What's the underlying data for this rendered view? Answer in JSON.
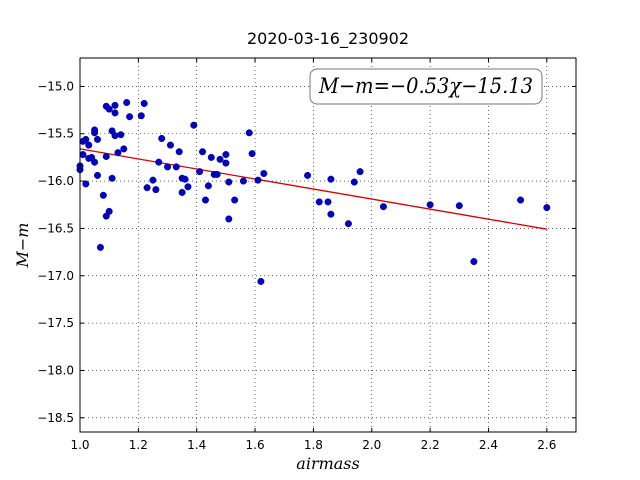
{
  "chart_data": {
    "type": "scatter",
    "title": "2020-03-16_230902",
    "xlabel": "airmass",
    "ylabel": "M−m",
    "xlim": [
      1.0,
      2.7
    ],
    "ylim": [
      -18.65,
      -14.7
    ],
    "y_inverted": true,
    "grid": true,
    "annotation": "M−m=−0.53χ−15.13",
    "annotation_position": "top-right",
    "x_ticks": [
      1.0,
      1.2,
      1.4,
      1.6,
      1.8,
      2.0,
      2.2,
      2.4,
      2.6
    ],
    "x_tick_labels": [
      "1.0",
      "1.2",
      "1.4",
      "1.6",
      "1.8",
      "2.0",
      "2.2",
      "2.4",
      "2.6"
    ],
    "y_ticks": [
      -15.0,
      -15.5,
      -16.0,
      -16.5,
      -17.0,
      -17.5,
      -18.0,
      -18.5
    ],
    "y_tick_labels": [
      "−15.0",
      "−15.5",
      "−16.0",
      "−16.5",
      "−17.0",
      "−17.5",
      "−18.0",
      "−18.5"
    ],
    "fit": {
      "slope": -0.53,
      "intercept": -15.13,
      "x_range": [
        1.0,
        2.6
      ],
      "color": "#d40000"
    },
    "point_color": "#0000c8",
    "points": [
      [
        1.0,
        -15.84
      ],
      [
        1.0,
        -15.88
      ],
      [
        1.01,
        -15.58
      ],
      [
        1.01,
        -15.72
      ],
      [
        1.02,
        -16.03
      ],
      [
        1.02,
        -15.56
      ],
      [
        1.03,
        -15.76
      ],
      [
        1.03,
        -15.62
      ],
      [
        1.04,
        -15.75
      ],
      [
        1.05,
        -15.8
      ],
      [
        1.05,
        -15.49
      ],
      [
        1.05,
        -15.46
      ],
      [
        1.06,
        -15.56
      ],
      [
        1.06,
        -15.94
      ],
      [
        1.07,
        -16.7
      ],
      [
        1.08,
        -16.15
      ],
      [
        1.09,
        -15.74
      ],
      [
        1.09,
        -15.21
      ],
      [
        1.09,
        -16.37
      ],
      [
        1.1,
        -16.32
      ],
      [
        1.1,
        -15.24
      ],
      [
        1.11,
        -15.47
      ],
      [
        1.11,
        -15.97
      ],
      [
        1.12,
        -15.2
      ],
      [
        1.12,
        -15.52
      ],
      [
        1.12,
        -15.28
      ],
      [
        1.13,
        -15.7
      ],
      [
        1.14,
        -15.51
      ],
      [
        1.15,
        -15.66
      ],
      [
        1.16,
        -15.17
      ],
      [
        1.17,
        -15.32
      ],
      [
        1.21,
        -15.31
      ],
      [
        1.22,
        -15.18
      ],
      [
        1.23,
        -16.07
      ],
      [
        1.25,
        -15.99
      ],
      [
        1.26,
        -16.09
      ],
      [
        1.27,
        -15.8
      ],
      [
        1.28,
        -15.55
      ],
      [
        1.3,
        -15.85
      ],
      [
        1.31,
        -15.62
      ],
      [
        1.33,
        -15.85
      ],
      [
        1.34,
        -15.69
      ],
      [
        1.35,
        -15.97
      ],
      [
        1.35,
        -16.12
      ],
      [
        1.36,
        -15.98
      ],
      [
        1.37,
        -16.06
      ],
      [
        1.39,
        -15.41
      ],
      [
        1.41,
        -15.9
      ],
      [
        1.42,
        -15.69
      ],
      [
        1.43,
        -16.2
      ],
      [
        1.44,
        -16.05
      ],
      [
        1.45,
        -15.75
      ],
      [
        1.46,
        -15.93
      ],
      [
        1.47,
        -15.93
      ],
      [
        1.48,
        -15.77
      ],
      [
        1.5,
        -15.81
      ],
      [
        1.5,
        -15.72
      ],
      [
        1.51,
        -16.01
      ],
      [
        1.51,
        -16.4
      ],
      [
        1.53,
        -16.2
      ],
      [
        1.56,
        -16.0
      ],
      [
        1.58,
        -15.49
      ],
      [
        1.59,
        -15.71
      ],
      [
        1.61,
        -15.99
      ],
      [
        1.62,
        -17.06
      ],
      [
        1.63,
        -15.92
      ],
      [
        1.78,
        -15.94
      ],
      [
        1.82,
        -16.22
      ],
      [
        1.85,
        -16.22
      ],
      [
        1.86,
        -16.35
      ],
      [
        1.86,
        -15.98
      ],
      [
        1.92,
        -16.45
      ],
      [
        1.94,
        -16.01
      ],
      [
        1.96,
        -15.9
      ],
      [
        2.04,
        -16.27
      ],
      [
        2.2,
        -16.25
      ],
      [
        2.3,
        -16.26
      ],
      [
        2.35,
        -16.85
      ],
      [
        2.51,
        -16.2
      ],
      [
        2.6,
        -16.28
      ]
    ]
  }
}
